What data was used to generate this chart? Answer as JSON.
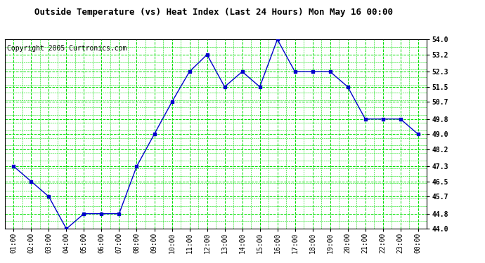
{
  "title": "Outside Temperature (vs) Heat Index (Last 24 Hours) Mon May 16 00:00",
  "copyright": "Copyright 2005 Curtronics.com",
  "x_labels": [
    "01:00",
    "02:00",
    "03:00",
    "04:00",
    "05:00",
    "06:00",
    "07:00",
    "08:00",
    "09:00",
    "10:00",
    "11:00",
    "12:00",
    "13:00",
    "14:00",
    "15:00",
    "16:00",
    "17:00",
    "18:00",
    "19:00",
    "20:00",
    "21:00",
    "22:00",
    "23:00",
    "00:00"
  ],
  "y_values": [
    47.3,
    46.5,
    45.7,
    44.0,
    44.8,
    44.8,
    44.8,
    47.3,
    49.0,
    50.7,
    52.3,
    53.2,
    51.5,
    52.3,
    51.5,
    54.0,
    52.3,
    52.3,
    52.3,
    51.5,
    49.8,
    49.8,
    49.8,
    49.0
  ],
  "ylim": [
    44.0,
    54.0
  ],
  "y_ticks": [
    44.0,
    44.8,
    45.7,
    46.5,
    47.3,
    48.2,
    49.0,
    49.8,
    50.7,
    51.5,
    52.3,
    53.2,
    54.0
  ],
  "line_color": "#0000cc",
  "marker_color": "#0000cc",
  "bg_color": "#ffffff",
  "plot_bg_color": "#ffffff",
  "grid_color": "#00dd00",
  "title_fontsize": 9,
  "tick_fontsize": 7,
  "copyright_fontsize": 7
}
